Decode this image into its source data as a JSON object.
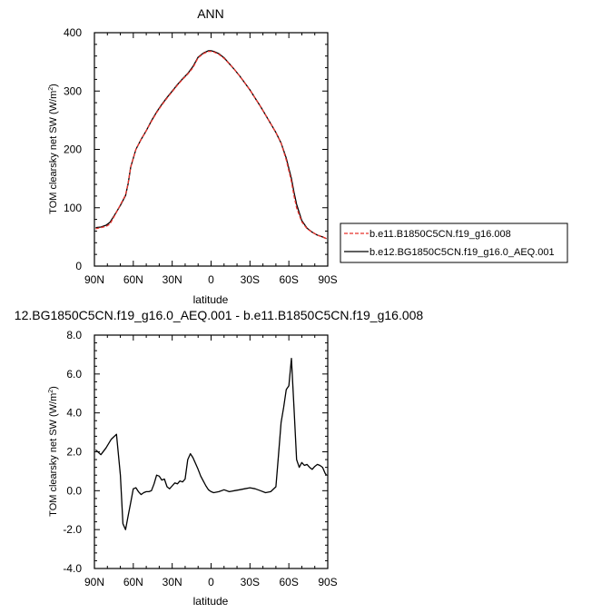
{
  "chart_data": [
    {
      "type": "line",
      "title": "ANN",
      "xlabel": "latitude",
      "ylabel_main": "TOM clearsky net SW (W/m",
      "ylabel_sup": "2",
      "ylabel_close": ")",
      "xlim": [
        90,
        -90
      ],
      "ylim": [
        0,
        400
      ],
      "x_ticks": [
        90,
        60,
        30,
        0,
        -30,
        -60,
        -90
      ],
      "x_tick_labels": [
        "90N",
        "60N",
        "30N",
        "0",
        "30S",
        "60S",
        "90S"
      ],
      "y_ticks": [
        0,
        100,
        200,
        300,
        400
      ],
      "y_tick_labels": [
        "0",
        "100",
        "200",
        "300",
        "400"
      ],
      "legend_position": "right",
      "series": [
        {
          "name": "b.e11.B1850C5CN.f19_g16.008",
          "color": "#e8312b",
          "dash": "dashed",
          "x": [
            89,
            85,
            81,
            78,
            74,
            70,
            66,
            64,
            62,
            58,
            54,
            50,
            46,
            42,
            38,
            34,
            30,
            26,
            22,
            18,
            14,
            10,
            6,
            2,
            0,
            -2,
            -6,
            -10,
            -14,
            -18,
            -22,
            -26,
            -30,
            -34,
            -38,
            -42,
            -46,
            -50,
            -54,
            -58,
            -62,
            -64,
            -66,
            -70,
            -74,
            -78,
            -82,
            -86,
            -89
          ],
          "values": [
            64,
            66,
            68,
            72,
            88,
            105,
            122,
            142,
            170,
            200,
            217,
            232,
            248,
            263,
            276,
            288,
            299,
            310,
            320,
            329,
            340,
            357,
            364,
            368,
            368,
            367,
            363,
            356,
            347,
            337,
            326,
            314,
            302,
            288,
            274,
            259,
            244,
            229,
            211,
            182,
            145,
            120,
            100,
            76,
            64,
            58,
            53,
            50,
            47
          ]
        },
        {
          "name": "b.e12.BG1850C5CN.f19_g16.0_AEQ.001",
          "color": "#000000",
          "dash": "solid",
          "x": [
            89,
            85,
            81,
            78,
            74,
            70,
            66,
            64,
            62,
            58,
            54,
            50,
            46,
            42,
            38,
            34,
            30,
            26,
            22,
            18,
            14,
            10,
            6,
            2,
            0,
            -2,
            -6,
            -10,
            -14,
            -18,
            -22,
            -26,
            -30,
            -34,
            -38,
            -42,
            -46,
            -50,
            -54,
            -58,
            -62,
            -64,
            -66,
            -70,
            -74,
            -78,
            -82,
            -86,
            -89
          ],
          "values": [
            66,
            67,
            70,
            75,
            89,
            104,
            121,
            141,
            170,
            200,
            217,
            232,
            249,
            264,
            277,
            289,
            300,
            311,
            321,
            330,
            342,
            358,
            365,
            369,
            369,
            368,
            364,
            357,
            347,
            337,
            326,
            314,
            302,
            288,
            274,
            259,
            244,
            229,
            211,
            185,
            150,
            126,
            106,
            78,
            65,
            58,
            53,
            50,
            47
          ]
        }
      ]
    },
    {
      "type": "line",
      "title": "12.BG1850C5CN.f19_g16.0_AEQ.001 - b.e11.B1850C5CN.f19_g16.008",
      "xlabel": "latitude",
      "ylabel_main": "TOM clearsky net SW (W/m",
      "ylabel_sup": "2",
      "ylabel_close": ")",
      "xlim": [
        90,
        -90
      ],
      "ylim": [
        -4.0,
        8.0
      ],
      "x_ticks": [
        90,
        60,
        30,
        0,
        -30,
        -60,
        -90
      ],
      "x_tick_labels": [
        "90N",
        "60N",
        "30N",
        "0",
        "30S",
        "60S",
        "90S"
      ],
      "y_ticks": [
        -4,
        -2,
        0,
        2,
        4,
        6,
        8
      ],
      "y_tick_labels": [
        "-4.0",
        "-2.0",
        "0.0",
        "2.0",
        "4.0",
        "6.0",
        "8.0"
      ],
      "series": [
        {
          "color": "#000000",
          "dash": "solid",
          "x": [
            89,
            85,
            81,
            77,
            73,
            70,
            68,
            66,
            64,
            62,
            60,
            58,
            56,
            54,
            52,
            50,
            48,
            46,
            44,
            42,
            40,
            38,
            36,
            34,
            32,
            30,
            28,
            26,
            24,
            22,
            20,
            18,
            16,
            14,
            12,
            10,
            8,
            6,
            4,
            2,
            0,
            -2,
            -6,
            -10,
            -14,
            -18,
            -22,
            -26,
            -30,
            -34,
            -38,
            -42,
            -46,
            -50,
            -52,
            -54,
            -56,
            -58,
            -60,
            -62,
            -64,
            -66,
            -68,
            -70,
            -72,
            -74,
            -76,
            -78,
            -80,
            -82,
            -84,
            -86,
            -88,
            -89
          ],
          "values": [
            2.1,
            1.85,
            2.2,
            2.65,
            2.9,
            0.8,
            -1.7,
            -2.0,
            -1.3,
            -0.6,
            0.1,
            0.15,
            -0.05,
            -0.2,
            -0.1,
            -0.05,
            -0.05,
            0.0,
            0.35,
            0.8,
            0.75,
            0.55,
            0.6,
            0.2,
            0.1,
            0.25,
            0.4,
            0.35,
            0.5,
            0.45,
            0.6,
            1.6,
            1.9,
            1.7,
            1.4,
            1.1,
            0.75,
            0.5,
            0.25,
            0.05,
            -0.05,
            -0.1,
            -0.05,
            0.05,
            -0.05,
            0.0,
            0.05,
            0.1,
            0.15,
            0.1,
            0.0,
            -0.1,
            -0.05,
            0.2,
            1.8,
            3.5,
            4.3,
            5.2,
            5.4,
            6.8,
            4.2,
            1.6,
            1.2,
            1.45,
            1.3,
            1.35,
            1.2,
            1.1,
            1.25,
            1.35,
            1.3,
            1.2,
            0.9,
            0.8
          ]
        }
      ]
    }
  ]
}
